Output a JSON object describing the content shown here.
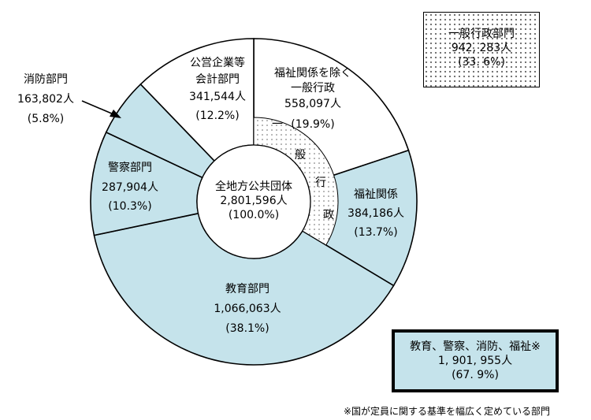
{
  "chart_data": {
    "type": "pie",
    "subtype": "donut",
    "center": {
      "title": "全地方公共団体",
      "value": "2,801,596人",
      "pct": "(100.0%)"
    },
    "slices": [
      {
        "id": "welfare-general",
        "name": "福祉関係を除く一般行政",
        "lines": [
          "福祉関係を除く",
          "一般行政"
        ],
        "value": "558,097人",
        "pct": "(19.9%)",
        "share": 19.9,
        "category": "一般行政",
        "fill": "#ffffff"
      },
      {
        "id": "welfare",
        "name": "福祉関係",
        "lines": [
          "福祉関係"
        ],
        "value": "384,186人",
        "pct": "(13.7%)",
        "share": 13.7,
        "category": "一般行政",
        "fill": "#c5e3eb"
      },
      {
        "id": "education",
        "name": "教育部門",
        "lines": [
          "教育部門"
        ],
        "value": "1,066,063人",
        "pct": "(38.1%)",
        "share": 38.1,
        "fill": "#c5e3eb"
      },
      {
        "id": "police",
        "name": "警察部門",
        "lines": [
          "警察部門"
        ],
        "value": "287,904人",
        "pct": "(10.3%)",
        "share": 10.3,
        "fill": "#c5e3eb"
      },
      {
        "id": "fire",
        "name": "消防部門",
        "lines": [
          "消防部門"
        ],
        "value": "163,802人",
        "pct": "(5.8%)",
        "share": 5.8,
        "fill": "#c5e3eb"
      },
      {
        "id": "public-enterprise",
        "name": "公営企業等会計部門",
        "lines": [
          "公営企業等",
          "会計部門"
        ],
        "value": "341,544人",
        "pct": "(12.2%)",
        "share": 12.2,
        "fill": "#ffffff"
      }
    ],
    "inner_ring": {
      "chars": [
        "一",
        "般",
        "行",
        "政"
      ],
      "covers": [
        "福祉関係を除く一般行政",
        "福祉関係"
      ],
      "pattern": "dotted"
    },
    "general_admin_total": {
      "lines": [
        "一般行政部門",
        "942, 283人",
        "(33. 6%)"
      ]
    },
    "combined_total": {
      "lines": [
        "教育、警察、消防、福祉※",
        "1, 901, 955人",
        "(67. 9%)"
      ]
    },
    "footnote": "※国が定員に関する基準を幅広く定めている部門"
  },
  "colors": {
    "highlight": "#c5e3eb",
    "white": "#ffffff",
    "outline": "#000000"
  }
}
